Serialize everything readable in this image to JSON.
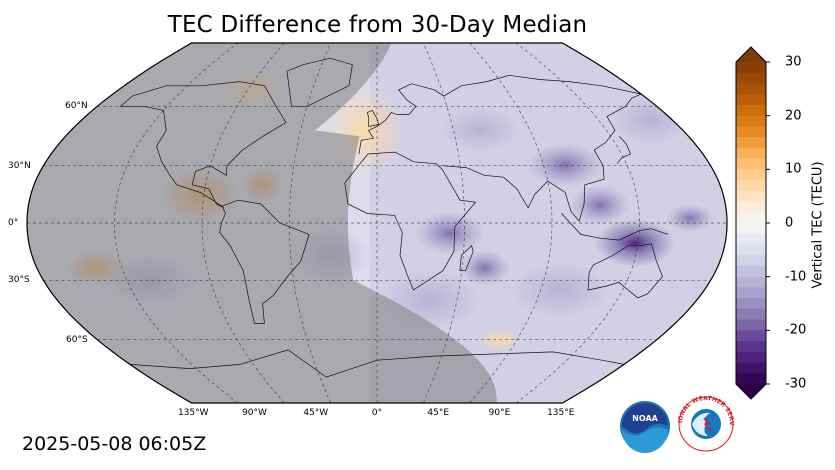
{
  "title": "TEC Difference from 30-Day Median",
  "timestamp": "2025-05-08 06:05Z",
  "map": {
    "projection": "Robinson",
    "latitude_labels": [
      "60°N",
      "30°N",
      "0°",
      "30°S",
      "60°S"
    ],
    "longitude_labels": [
      "135°W",
      "90°W",
      "45°W",
      "0°",
      "45°E",
      "90°E",
      "135°E"
    ],
    "night_side_shading": true
  },
  "colorbar": {
    "label": "Vertical TEC (TECU)",
    "ticks": [
      "30",
      "20",
      "10",
      "0",
      "-10",
      "-20",
      "-30"
    ],
    "range": [
      -30,
      30
    ],
    "colormap": "PuOr_r",
    "extend": "both"
  },
  "logos": [
    {
      "name": "noaa-logo",
      "text": "NOAA"
    },
    {
      "name": "nws-logo",
      "text": "NATIONAL WEATHER SERVICE"
    }
  ],
  "colors": {
    "positive": "#b35806",
    "neutral": "#f7f7f7",
    "negative": "#542788",
    "night_shade": "#7f7f7f"
  }
}
